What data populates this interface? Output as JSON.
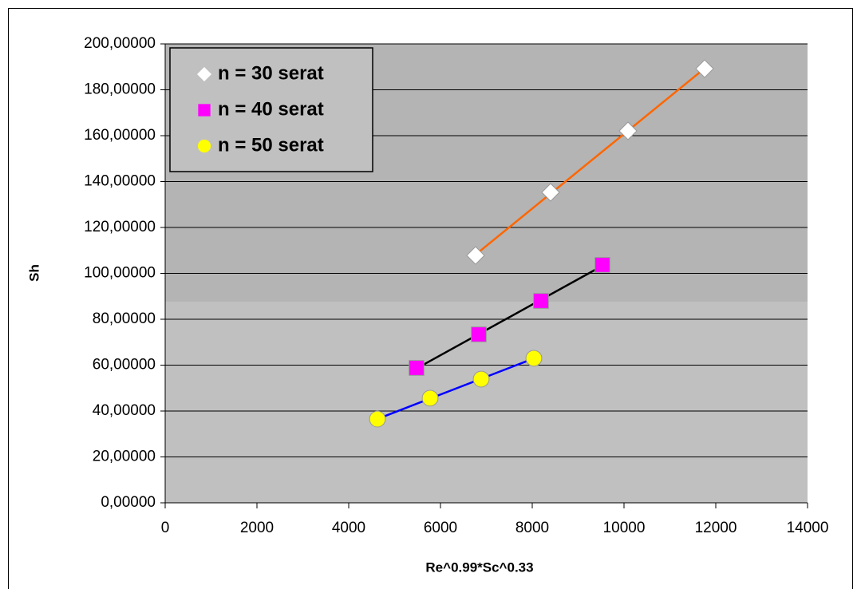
{
  "chart_data": {
    "type": "scatter",
    "xlabel": "Re^0.99*Sc^0.33",
    "ylabel": "Sh",
    "xlim": [
      0,
      14000
    ],
    "xticks": [
      0,
      2000,
      4000,
      6000,
      8000,
      10000,
      12000,
      14000
    ],
    "ylim": [
      0,
      200
    ],
    "yticks": [
      {
        "value": 0,
        "label": "0,00000"
      },
      {
        "value": 20,
        "label": "20,00000"
      },
      {
        "value": 40,
        "label": "40,00000"
      },
      {
        "value": 60,
        "label": "60,00000"
      },
      {
        "value": 80,
        "label": "80,00000"
      },
      {
        "value": 100,
        "label": "100,00000"
      },
      {
        "value": 120,
        "label": "120,00000"
      },
      {
        "value": 140,
        "label": "140,00000"
      },
      {
        "value": 160,
        "label": "160,00000"
      },
      {
        "value": 180,
        "label": "180,00000"
      },
      {
        "value": 200,
        "label": "200,00000"
      }
    ],
    "grid": true,
    "legend": "upper-left",
    "series": [
      {
        "name": "n = 30 serat",
        "color": "#ffffff",
        "marker": "diamond",
        "trendline_color": "#ff6600",
        "x": [
          6765,
          8400,
          10087,
          11757
        ],
        "values": [
          107.8,
          135.3,
          162.1,
          189.2
        ]
      },
      {
        "name": "n = 40 serat",
        "color": "#ff00ff",
        "marker": "square",
        "trendline_color": "#000000",
        "x": [
          5478,
          6835,
          8191,
          9530
        ],
        "values": [
          58.8,
          73.4,
          88.0,
          103.7
        ]
      },
      {
        "name": "n = 50 serat",
        "color": "#ffff00",
        "marker": "circle",
        "trendline_color": "#0000ff",
        "x": [
          4626,
          5774,
          6887,
          8035
        ],
        "values": [
          36.5,
          45.6,
          53.9,
          63.0
        ]
      }
    ]
  }
}
